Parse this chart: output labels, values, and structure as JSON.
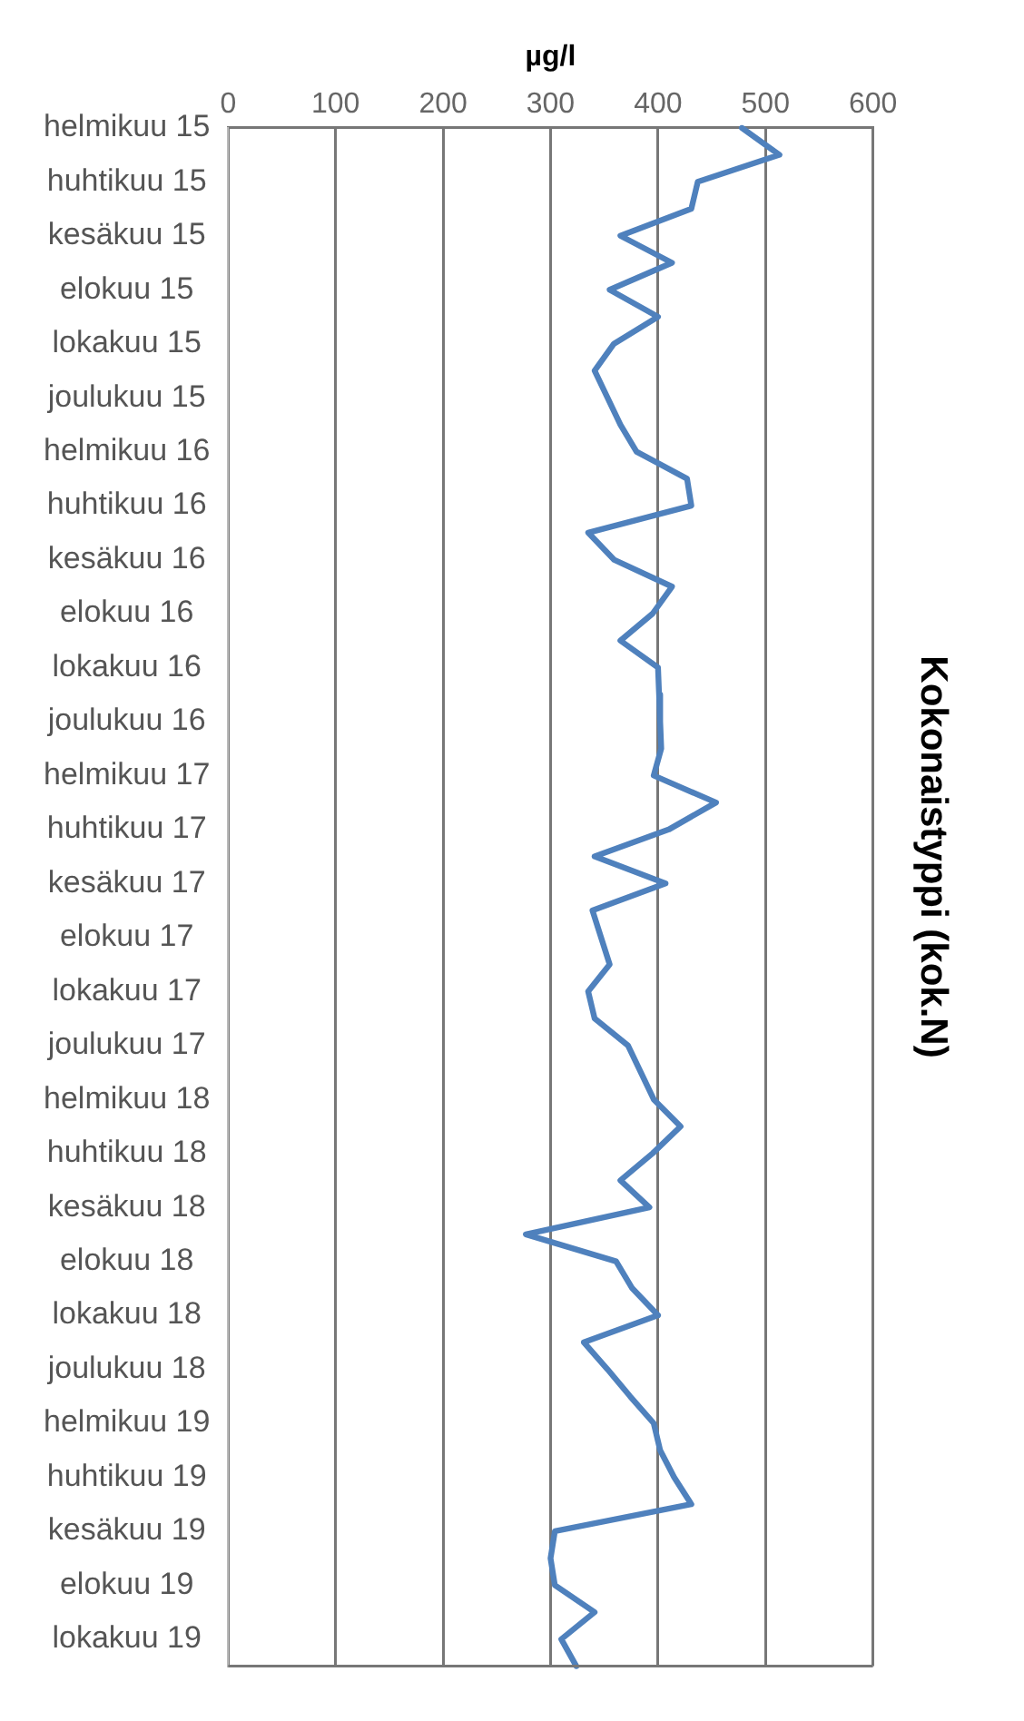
{
  "chart_data": {
    "type": "line",
    "orientation": "horizontal",
    "title": "Kokonaistyppi (kok.N)",
    "xlabel": "µg/l",
    "categories": [
      "helmikuu 15",
      null,
      "huhtikuu 15",
      null,
      "kesäkuu 15",
      null,
      "elokuu 15",
      null,
      "lokakuu 15",
      null,
      "joulukuu 15",
      null,
      "helmikuu 16",
      null,
      "huhtikuu 16",
      null,
      "kesäkuu 16",
      null,
      "elokuu 16",
      null,
      "lokakuu 16",
      null,
      "joulukuu 16",
      null,
      "helmikuu 17",
      null,
      "huhtikuu 17",
      null,
      "kesäkuu 17",
      null,
      "elokuu 17",
      null,
      "lokakuu 17",
      null,
      "joulukuu 17",
      null,
      "helmikuu 18",
      null,
      "huhtikuu 18",
      null,
      "kesäkuu 18",
      null,
      "elokuu 18",
      null,
      "lokakuu 18",
      null,
      "joulukuu 18",
      null,
      "helmikuu 19",
      null,
      "huhtikuu 19",
      null,
      "kesäkuu 19",
      null,
      "elokuu 19",
      null,
      "lokakuu 19",
      null
    ],
    "series": [
      {
        "color": "#4f81bd",
        "values": [
          478,
          513,
          437,
          431,
          365,
          413,
          355,
          400,
          359,
          341,
          353,
          365,
          380,
          427,
          431,
          335,
          359,
          413,
          395,
          365,
          400,
          401,
          402,
          403,
          396,
          454,
          410,
          341,
          407,
          339,
          347,
          355,
          335,
          341,
          372,
          384,
          396,
          421,
          395,
          365,
          392,
          277,
          361,
          376,
          400,
          331,
          353,
          374,
          396,
          402,
          415,
          431,
          304,
          300,
          304,
          341,
          310,
          324
        ]
      }
    ],
    "xlim": [
      0,
      600
    ],
    "xticks": [
      0,
      100,
      200,
      300,
      400,
      500,
      600
    ],
    "grid": "x",
    "legend": false,
    "marker": "none",
    "line_style": "solid"
  }
}
